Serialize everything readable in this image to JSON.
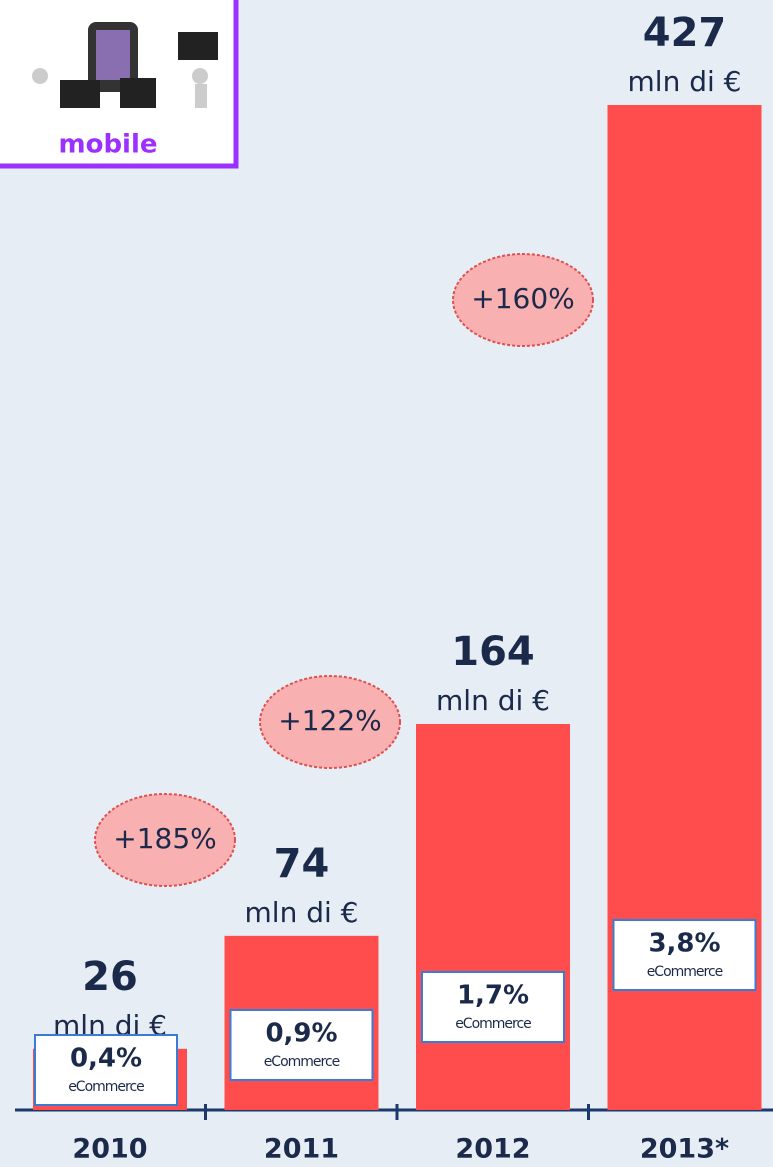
{
  "logo_text": "mobile",
  "chart_data": {
    "type": "bar",
    "categories": [
      "2010",
      "2011",
      "2012",
      "2013*"
    ],
    "values": [
      26,
      74,
      164,
      427
    ],
    "value_unit": "mln di €",
    "color": "#ff4d4d",
    "share_values": [
      0.4,
      0.9,
      1.7,
      3.8
    ],
    "share_labels": [
      "0,4%",
      "0,9%",
      "1,7%",
      "3,8%"
    ],
    "share_caption": "eCommerce",
    "growth_labels": [
      "+185%",
      "+122%",
      "+160%"
    ]
  }
}
